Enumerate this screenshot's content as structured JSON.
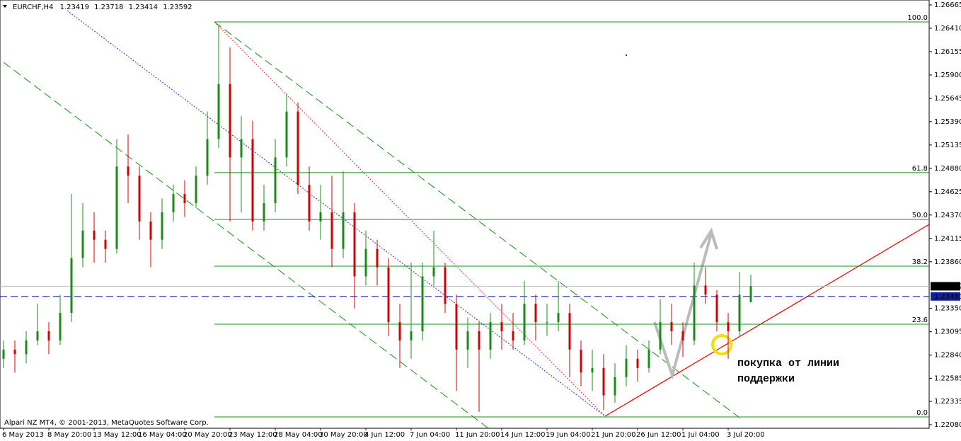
{
  "chart_data": {
    "type": "candlestick",
    "symbol": "EURCHF,H4",
    "footer": "Alpari NZ MT4, © 2001-2013, MetaQuotes Software Corp.",
    "annotation": [
      "покупка от линии",
      "поддержки"
    ],
    "up_color": "#1a8c1a",
    "down_color": "#d00000",
    "ylim": [
      1.22041,
      1.26719
    ],
    "yticks": [
      1.26665,
      {
        "value": 1.2641,
        "label": "1.26410"
      },
      1.26155,
      {
        "value": 1.259,
        "label": "1.25900"
      },
      1.25645,
      {
        "value": 1.2539,
        "label": "1.25390"
      },
      1.25135,
      {
        "value": 1.2488,
        "label": "1.24880"
      },
      1.24625,
      {
        "value": 1.2437,
        "label": "1.24370"
      },
      1.24115,
      {
        "value": 1.2386,
        "label": "1.23860"
      },
      {
        "value": 1.2335,
        "label": "1.23350"
      },
      1.23095,
      {
        "value": 1.2284,
        "label": "1.22840"
      },
      1.22585,
      1.22335,
      {
        "value": 1.2208,
        "label": "1.22080"
      }
    ],
    "level_line": 1.23481,
    "fib_levels": [
      {
        "label": "100.0",
        "price": 1.26479
      },
      {
        "label": "61.8",
        "price": 1.24833
      },
      {
        "label": "50.0",
        "price": 1.24322
      },
      {
        "label": "38.2",
        "price": 1.23812
      },
      {
        "label": "23.6",
        "price": 1.23178
      },
      {
        "label": "0.0",
        "price": 1.22165
      }
    ],
    "categories": [
      "6 May 2013",
      null,
      null,
      null,
      "8 May 20:00",
      null,
      null,
      null,
      "13 May 12:00",
      null,
      null,
      null,
      "16 May 04:00",
      null,
      null,
      null,
      "20 May 20:00",
      null,
      null,
      null,
      "23 May 12:00",
      null,
      null,
      null,
      "28 May 04:00",
      null,
      null,
      null,
      "30 May 20:00",
      null,
      null,
      null,
      "4 Jun 12:00",
      null,
      null,
      null,
      "7 Jun 04:00",
      null,
      null,
      null,
      "11 Jun 20:00",
      null,
      null,
      null,
      "14 Jun 12:00",
      null,
      null,
      null,
      "19 Jun 04:00",
      null,
      null,
      null,
      "21 Jun 20:00",
      null,
      null,
      null,
      "26 Jun 12:00",
      null,
      null,
      null,
      "1 Jul 04:00",
      null,
      null,
      null,
      "3 Jul 20:00",
      null,
      null
    ],
    "open": [
      1.228,
      1.229,
      1.2285,
      1.23,
      1.231,
      1.23,
      1.233,
      1.239,
      1.242,
      1.241,
      1.24,
      1.249,
      1.248,
      1.243,
      1.241,
      1.244,
      1.246,
      1.245,
      1.248,
      1.252,
      1.258,
      1.25,
      1.252,
      1.243,
      1.245,
      1.25,
      1.255,
      1.247,
      1.243,
      1.244,
      1.24,
      1.244,
      1.237,
      1.24,
      1.238,
      1.232,
      1.23,
      1.231,
      1.237,
      1.238,
      1.234,
      1.229,
      1.231,
      1.229,
      1.232,
      1.231,
      1.23,
      1.234,
      1.232,
      1.232,
      1.233,
      1.229,
      1.2265,
      1.227,
      1.224,
      1.226,
      1.228,
      1.227,
      1.229,
      1.232,
      1.231,
      1.23,
      1.236,
      1.235,
      1.232,
      1.231,
      1.23419
    ],
    "high": [
      1.23,
      1.23,
      1.231,
      1.234,
      1.232,
      1.235,
      1.246,
      1.245,
      1.244,
      1.242,
      1.252,
      1.2525,
      1.249,
      1.244,
      1.2455,
      1.247,
      1.2475,
      1.249,
      1.255,
      1.2645,
      1.262,
      1.2545,
      1.254,
      1.247,
      1.252,
      1.257,
      1.256,
      1.249,
      1.247,
      1.248,
      1.2485,
      1.245,
      1.242,
      1.241,
      1.239,
      1.234,
      1.2385,
      1.2385,
      1.242,
      1.2385,
      1.235,
      1.2325,
      1.232,
      1.233,
      1.234,
      1.233,
      1.2365,
      1.235,
      1.234,
      1.2365,
      1.234,
      1.23,
      1.229,
      1.2285,
      1.2275,
      1.2295,
      1.229,
      1.23,
      1.2345,
      1.234,
      1.232,
      1.2385,
      1.238,
      1.2355,
      1.233,
      1.2375,
      1.23718
    ],
    "low": [
      1.227,
      1.2265,
      1.2275,
      1.2295,
      1.2285,
      1.2295,
      1.232,
      1.238,
      1.2385,
      1.2385,
      1.2395,
      1.245,
      1.241,
      1.238,
      1.24,
      1.243,
      1.2435,
      1.2445,
      1.247,
      1.251,
      1.243,
      1.244,
      1.242,
      1.242,
      1.244,
      1.249,
      1.246,
      1.242,
      1.241,
      1.238,
      1.239,
      1.2335,
      1.236,
      1.236,
      1.2305,
      1.227,
      1.228,
      1.23,
      1.236,
      1.233,
      1.2245,
      1.227,
      1.2222,
      1.228,
      1.229,
      1.229,
      1.2295,
      1.23,
      1.2305,
      1.231,
      1.226,
      1.225,
      1.2245,
      1.2224,
      1.2232,
      1.225,
      1.2255,
      1.2265,
      1.2285,
      1.2295,
      1.2282,
      1.2295,
      1.234,
      1.231,
      1.228,
      1.2305,
      1.23414
    ],
    "close": [
      1.229,
      1.2285,
      1.23,
      1.231,
      1.23,
      1.233,
      1.239,
      1.242,
      1.241,
      1.24,
      1.249,
      1.248,
      1.243,
      1.241,
      1.244,
      1.246,
      1.245,
      1.248,
      1.252,
      1.258,
      1.25,
      1.252,
      1.243,
      1.245,
      1.25,
      1.255,
      1.247,
      1.243,
      1.244,
      1.24,
      1.244,
      1.237,
      1.24,
      1.238,
      1.232,
      1.23,
      1.231,
      1.237,
      1.238,
      1.234,
      1.229,
      1.231,
      1.229,
      1.232,
      1.231,
      1.23,
      1.234,
      1.232,
      1.232,
      1.233,
      1.229,
      1.2265,
      1.227,
      1.224,
      1.226,
      1.228,
      1.227,
      1.229,
      1.232,
      1.231,
      1.23,
      1.236,
      1.235,
      1.232,
      1.231,
      1.235,
      1.23592
    ]
  }
}
